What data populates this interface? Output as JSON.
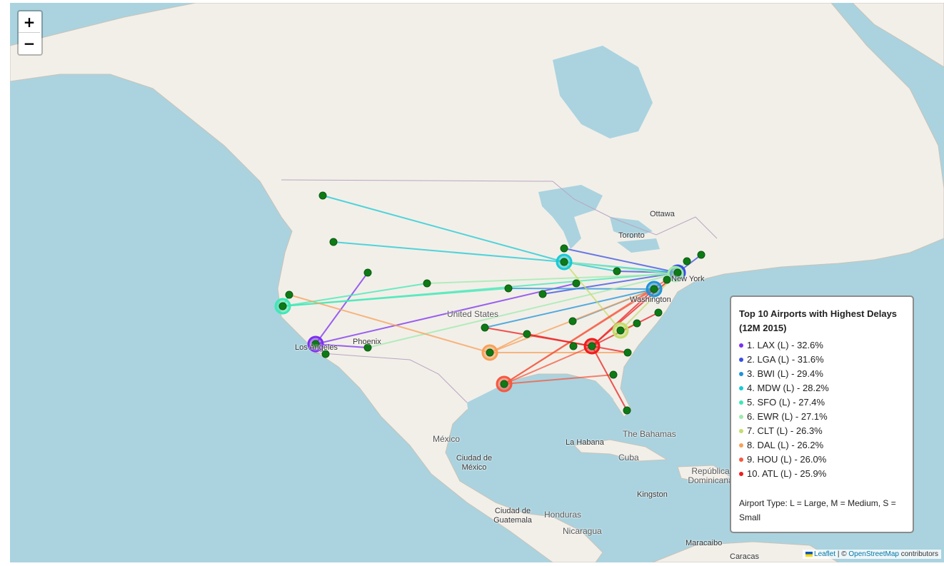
{
  "controls": {
    "zoom_in": "+",
    "zoom_out": "−"
  },
  "places": {
    "ottawa": "Ottawa",
    "toronto": "Toronto",
    "new_york": "New York",
    "washington": "Washington",
    "united_states": "United States",
    "phoenix": "Phoenix",
    "los_angeles": "Los Angeles",
    "mexico": "México",
    "ciudad_de_mexico": "Ciudad de México",
    "la_habana": "La Habana",
    "cuba": "Cuba",
    "bahamas": "The Bahamas",
    "republica_dominicana": "República Dominicana",
    "kingston": "Kingston",
    "ciudad_guatemala": "Ciudad de Guatemala",
    "honduras": "Honduras",
    "nicaragua": "Nicaragua",
    "maracaibo": "Maracaibo",
    "caracas": "Caracas"
  },
  "legend": {
    "title": "Top 10 Airports with Highest Delays (12M 2015)",
    "items": [
      {
        "label": "1. LAX (L) - 32.6%",
        "color": "#7b2ff0"
      },
      {
        "label": "2. LGA (L) - 31.6%",
        "color": "#3a4fe0"
      },
      {
        "label": "3. BWI (L) - 29.4%",
        "color": "#1f93d8"
      },
      {
        "label": "4. MDW (L) - 28.2%",
        "color": "#18c9d4"
      },
      {
        "label": "5. SFO (L) - 27.4%",
        "color": "#3ee8b5"
      },
      {
        "label": "6. EWR (L) - 27.1%",
        "color": "#9cebab"
      },
      {
        "label": "7. CLT (L) - 26.3%",
        "color": "#c4dd6a"
      },
      {
        "label": "8. DAL (L) - 26.2%",
        "color": "#f8a058"
      },
      {
        "label": "9. HOU (L) - 26.0%",
        "color": "#f5583f"
      },
      {
        "label": "10. ATL (L) - 25.9%",
        "color": "#ee1c1c"
      }
    ],
    "note": "Airport Type: L = Large, M = Medium, S = Small"
  },
  "attribution": {
    "leaflet": "Leaflet",
    "sep": " | © ",
    "osm": "OpenStreetMap",
    "contrib": " contributors"
  }
}
